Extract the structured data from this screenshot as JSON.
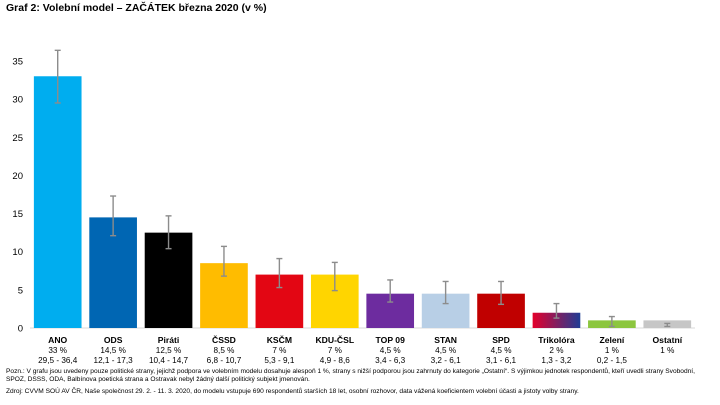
{
  "title": "Graf 2: Volební model – ZAČÁTEK března 2020 (v %)",
  "chart_data": {
    "type": "bar",
    "title": "Graf 2: Volební model – ZAČÁTEK března 2020 (v %)",
    "xlabel": "",
    "ylabel": "",
    "ylim": [
      0,
      40
    ],
    "yticks": [
      0,
      5,
      10,
      15,
      20,
      25,
      30,
      35
    ],
    "grid": false,
    "legend": "none",
    "error_bars": true,
    "categories": [
      "ANO",
      "ODS",
      "Piráti",
      "ČSSD",
      "KSČM",
      "KDU-ČSL",
      "TOP 09",
      "STAN",
      "SPD",
      "Trikolóra",
      "Zelení",
      "Ostatní"
    ],
    "values": [
      33,
      14.5,
      12.5,
      8.5,
      7,
      7,
      4.5,
      4.5,
      4.5,
      2,
      1,
      1
    ],
    "value_labels": [
      "33 %",
      "14,5 %",
      "12,5 %",
      "8,5 %",
      "7 %",
      "7 %",
      "4,5 %",
      "4,5 %",
      "4,5 %",
      "2 %",
      "1 %",
      "1 %"
    ],
    "range_labels": [
      "29,5 - 36,4",
      "12,1 - 17,3",
      "10,4 - 14,7",
      "6,8 - 10,7",
      "5,3 - 9,1",
      "4,9 - 8,6",
      "3,4 - 6,3",
      "3,2 - 6,1",
      "3,1 - 6,1",
      "1,3 - 3,2",
      "0,2 - 1,5",
      ""
    ],
    "error_low": [
      29.5,
      12.1,
      10.4,
      6.8,
      5.3,
      4.9,
      3.4,
      3.2,
      3.1,
      1.3,
      0.2,
      0.2
    ],
    "error_high": [
      36.4,
      17.3,
      14.7,
      10.7,
      9.1,
      8.6,
      6.3,
      6.1,
      6.1,
      3.2,
      1.5,
      0.6
    ],
    "colors": [
      "#00adef",
      "#0066b3",
      "#000000",
      "#ffbc00",
      "#e30613",
      "#ffd500",
      "#6d2c9f",
      "#b8cfe6",
      "#c00000",
      "gradient",
      "#8cc63f",
      "#c6c6c6"
    ],
    "trikolora_gradient": [
      "#e4002b",
      "#1f3c94"
    ],
    "error_bar_color": "#8c8c8c"
  },
  "notes": {
    "note": "Pozn.: V grafu jsou uvedeny pouze politické strany, jejichž podpora ve volebním modelu dosahuje alespoň 1 %, strany s nižší podporou jsou zahrnuty do kategorie „Ostatní“. S výjimkou jednotek respondentů, kteří uvedli strany Svobodní, SPOZ, DSSS, ODA, Balbínova poetická strana a Ostravak nebyl žádný další politický subjekt jmenován.",
    "source": "Zdroj: CVVM SOÚ AV ČR, Naše společnost 29. 2. - 11. 3. 2020, do modelu vstupuje 690 respondentů starších 18 let, osobní rozhovor, data vážená koeficientem volební účasti a jistoty volby strany."
  }
}
